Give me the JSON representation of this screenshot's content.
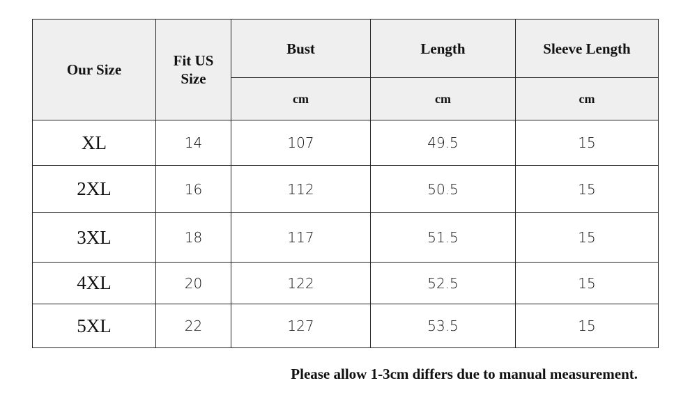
{
  "table": {
    "header": [
      "Our Size",
      "Fit US Size",
      "Bust",
      "Length",
      "Sleeve Length"
    ],
    "units": [
      "cm",
      "cm",
      "cm"
    ],
    "rows": [
      [
        "XL",
        14,
        107,
        49.5,
        15
      ],
      [
        "2XL",
        16,
        112,
        50.5,
        15
      ],
      [
        "3XL",
        18,
        117,
        51.5,
        15
      ],
      [
        "4XL",
        20,
        122,
        52.5,
        15
      ],
      [
        "5XL",
        22,
        127,
        53.5,
        15
      ]
    ]
  },
  "note": "Please allow 1-3cm differs due to manual measurement."
}
